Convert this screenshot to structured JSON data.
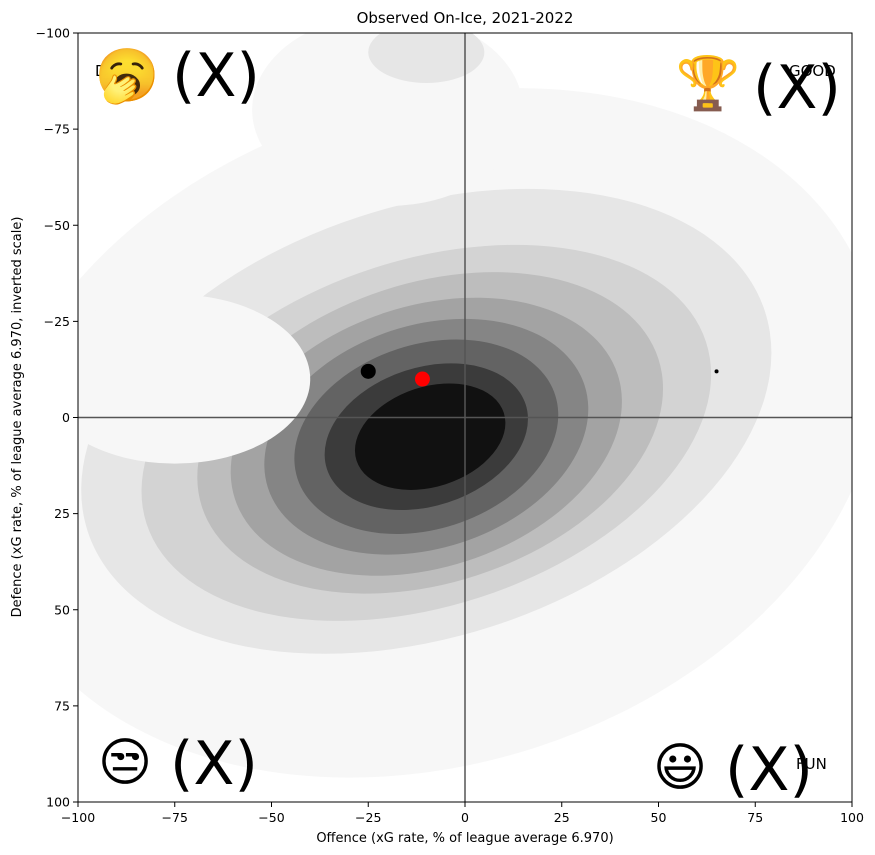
{
  "chart_data": {
    "type": "scatter",
    "title": "Observed On-Ice, 2021-2022",
    "xlabel": "Offence (xG rate, % of league average 6.970)",
    "ylabel": "Defence (xG rate, % of league average 6.970, inverted scale)",
    "xlim": [
      -100,
      100
    ],
    "ylim": [
      -100,
      100
    ],
    "y_inverted": true,
    "x_ticks": [
      "-100",
      "-75",
      "-50",
      "-25",
      "0",
      "25",
      "50",
      "75",
      "100"
    ],
    "y_ticks": [
      "-100",
      "-75",
      "-50",
      "-25",
      "0",
      "25",
      "50",
      "75",
      "100"
    ],
    "reference_lines": {
      "x": 0,
      "y": 0
    },
    "density": {
      "type": "kde",
      "center": [
        -10,
        4
      ],
      "colormap": "greys"
    },
    "points": [
      {
        "x": -25,
        "y": -12,
        "color": "#000000",
        "size": "large"
      },
      {
        "x": -11,
        "y": -10,
        "color": "#ff0000",
        "size": "large"
      },
      {
        "x": 65,
        "y": -12,
        "color": "#000000",
        "size": "small"
      }
    ],
    "quadrants": [
      {
        "name": "top-left",
        "text": "D",
        "emoji": "🥱",
        "marker": "(X)"
      },
      {
        "name": "top-right",
        "text": "GOOD",
        "emoji": "🏆",
        "marker": "(X)"
      },
      {
        "name": "bottom-left",
        "text": "",
        "emoji": "😒",
        "marker": "(X)"
      },
      {
        "name": "bottom-right",
        "text": "FUN",
        "emoji": "😃",
        "marker": "(X)"
      }
    ]
  }
}
